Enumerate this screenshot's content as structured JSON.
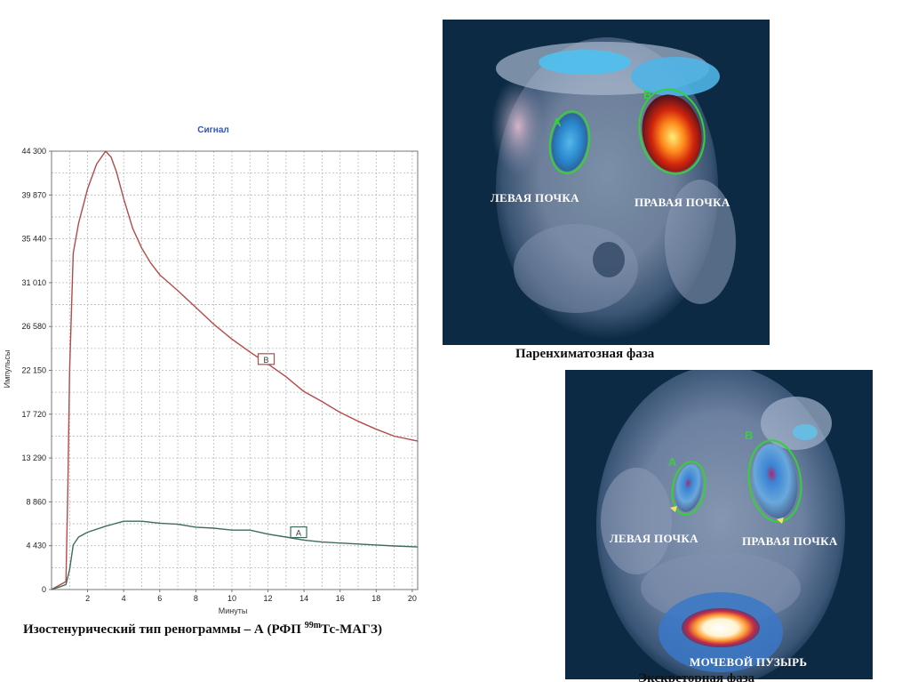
{
  "colors": {
    "series_B": "#b44a4a",
    "series_A": "#3f6b5e",
    "grid": "#b9b9b9",
    "chart_title": "#3355aa",
    "roi_outline": "#35d13a"
  },
  "chart_data": {
    "type": "line",
    "title": "Сигнал",
    "xlabel": "Минуты",
    "ylabel": "Импульсы",
    "xlim": [
      0,
      20.3
    ],
    "ylim": [
      0,
      44300
    ],
    "x_ticks": [
      2,
      4,
      6,
      8,
      10,
      12,
      14,
      16,
      18,
      20
    ],
    "x_tick_labels": [
      "2",
      "4",
      "6",
      "8",
      "10",
      "12",
      "14",
      "16",
      "18",
      "20"
    ],
    "y_ticks": [
      0,
      4430,
      8860,
      13290,
      17720,
      22150,
      26580,
      31010,
      35440,
      39870,
      44300
    ],
    "y_tick_labels": [
      "0",
      "4 430",
      "8 860",
      "13 290",
      "17 720",
      "22 150",
      "26 580",
      "31 010",
      "35 440",
      "39 870",
      "44 300"
    ],
    "grid": true,
    "series": [
      {
        "name": "B",
        "x": [
          0,
          0.5,
          0.8,
          0.9,
          1.0,
          1.2,
          1.5,
          2.0,
          2.5,
          3.0,
          3.3,
          3.6,
          4.0,
          4.5,
          5.0,
          5.5,
          6.0,
          7.0,
          8.0,
          9.0,
          10.0,
          11.0,
          12.0,
          13.0,
          14.0,
          15.0,
          16.0,
          17.0,
          18.0,
          19.0,
          20.3
        ],
        "y": [
          0,
          500,
          800,
          10000,
          22000,
          34000,
          37000,
          40500,
          43000,
          44300,
          43700,
          42200,
          39500,
          36500,
          34500,
          33000,
          31800,
          30200,
          28500,
          26800,
          25300,
          24000,
          22800,
          21500,
          20000,
          19000,
          17900,
          17000,
          16200,
          15500,
          15000
        ]
      },
      {
        "name": "A",
        "x": [
          0,
          0.5,
          0.8,
          1.0,
          1.2,
          1.5,
          2.0,
          3.0,
          4.0,
          5.0,
          6.0,
          7.0,
          8.0,
          9.0,
          10.0,
          11.0,
          12.0,
          13.0,
          14.0,
          15.0,
          16.0,
          17.0,
          18.0,
          19.0,
          20.3
        ],
        "y": [
          0,
          300,
          500,
          2000,
          4500,
          5300,
          5800,
          6400,
          6900,
          6900,
          6700,
          6600,
          6300,
          6200,
          6000,
          6000,
          5600,
          5300,
          5000,
          4800,
          4700,
          4600,
          4500,
          4400,
          4300
        ]
      }
    ],
    "annotations": [
      {
        "text": "B",
        "x": 11.9,
        "y": 23200,
        "series": "B"
      },
      {
        "text": "A",
        "x": 13.7,
        "y": 5700,
        "series": "A"
      }
    ]
  },
  "chart_caption": {
    "prefix": "Изостенурический тип ренограммы – А (РФП ",
    "sup": "99m",
    "suffix": "Тс-МАГЗ)"
  },
  "scan_top": {
    "roi_labels": [
      "A",
      "B"
    ],
    "label_left": "ЛЕВАЯ ПОЧКА",
    "label_right": "ПРАВАЯ ПОЧКА",
    "caption": "Паренхиматозная фаза"
  },
  "scan_bottom": {
    "roi_labels": [
      "A",
      "B"
    ],
    "label_left": "ЛЕВАЯ ПОЧКА",
    "label_right": "ПРАВАЯ ПОЧКА",
    "label_bladder": "МОЧЕВОЙ ПУЗЫРЬ",
    "caption_partial": "Экскреторная фаза"
  }
}
